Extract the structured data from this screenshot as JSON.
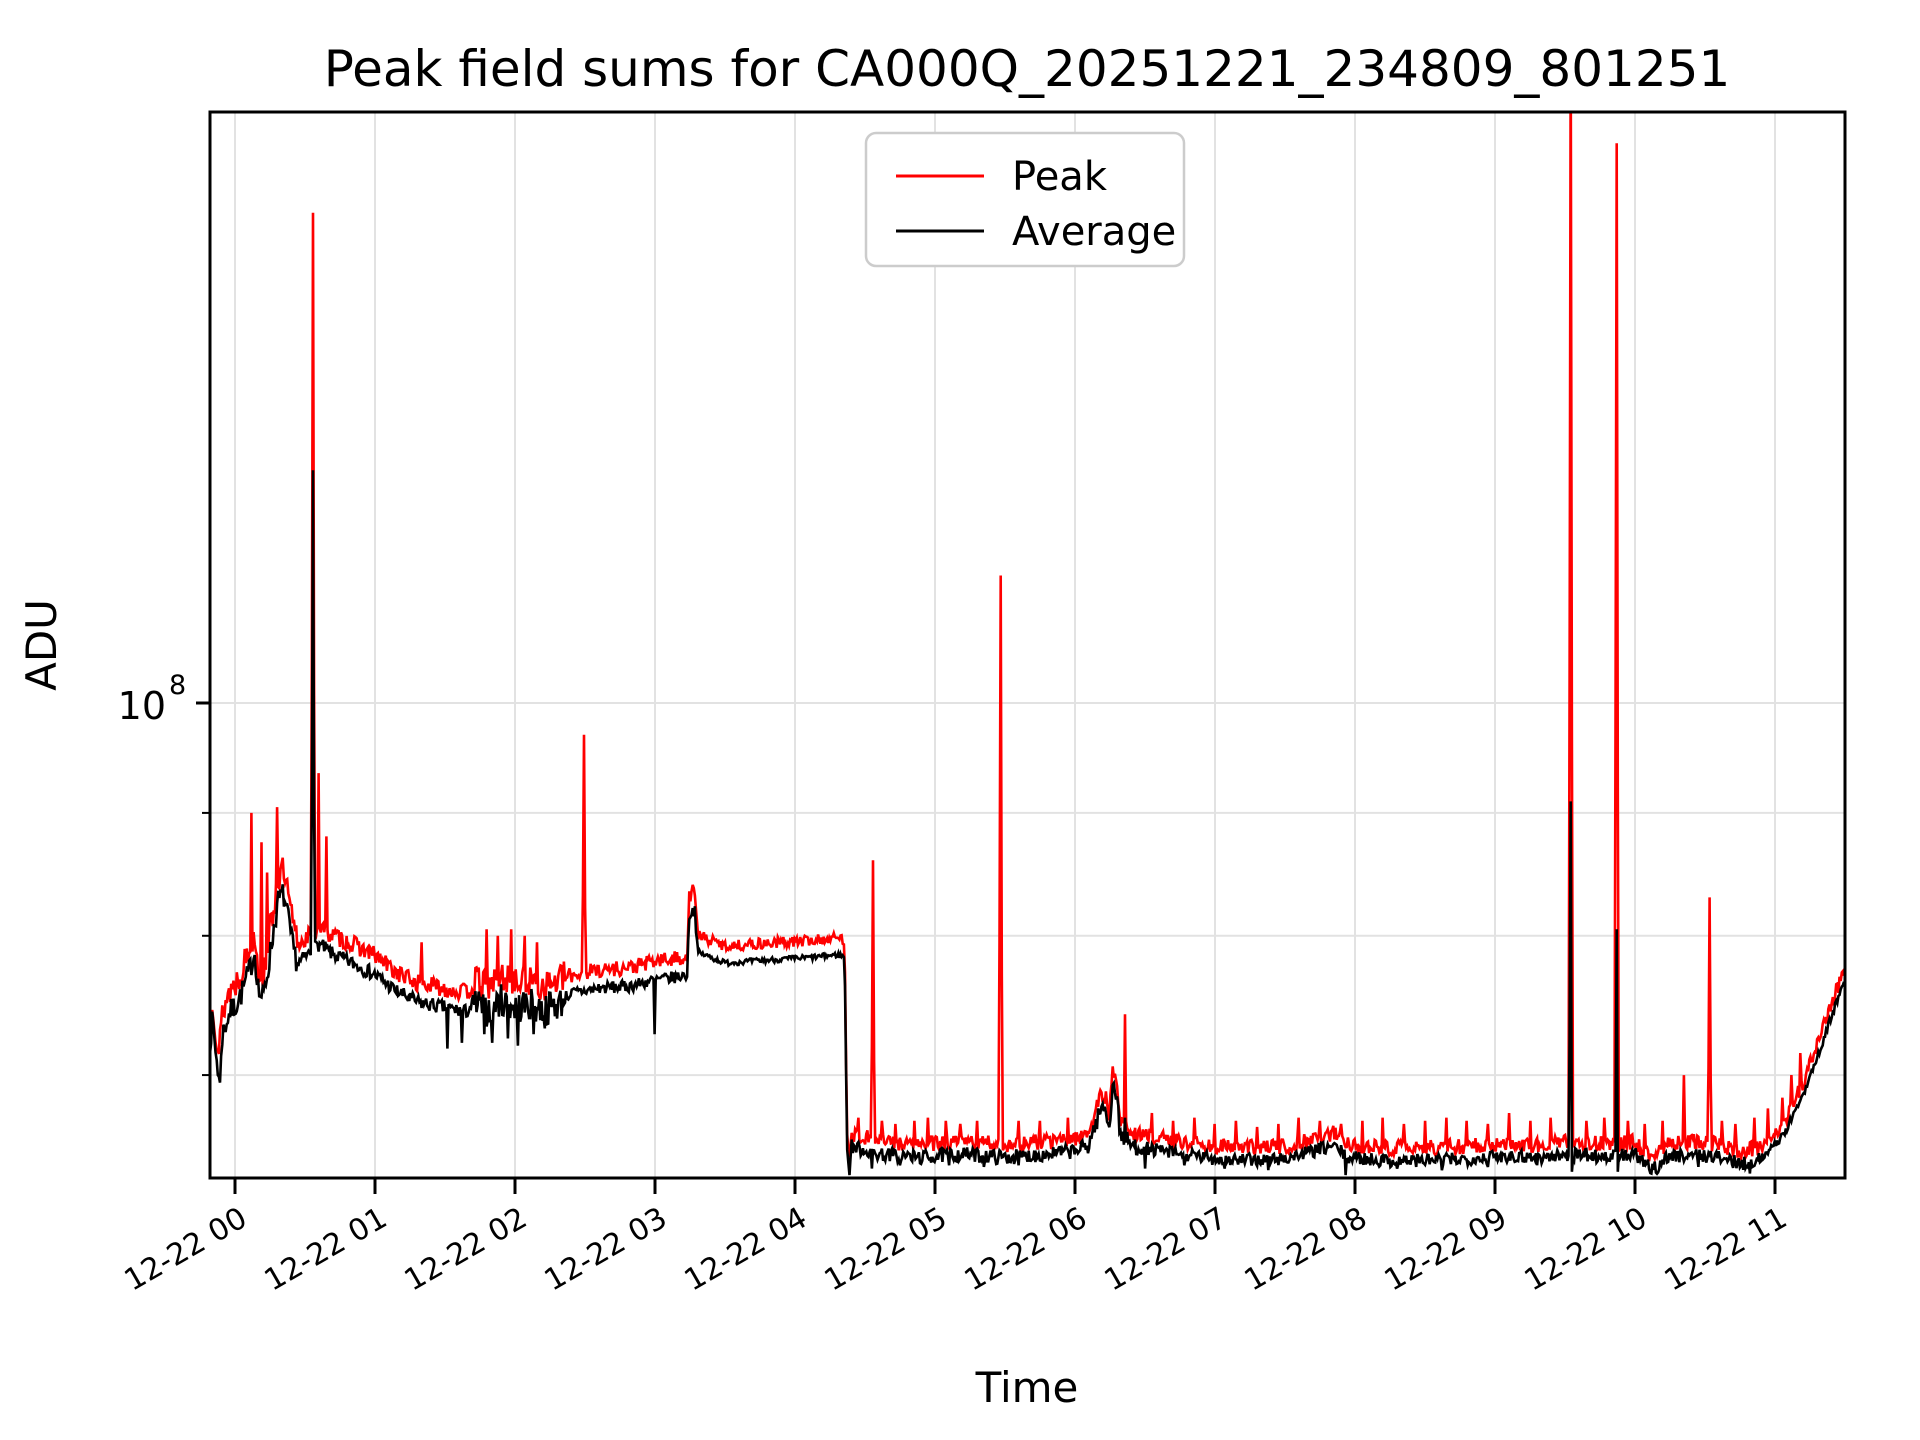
{
  "chart_data": {
    "type": "line",
    "title": "Peak field sums for CA000Q_20251221_234809_801251",
    "xlabel": "Time",
    "ylabel": "ADU",
    "x_tick_labels": [
      "12-22 00",
      "12-22 01",
      "12-22 02",
      "12-22 03",
      "12-22 04",
      "12-22 05",
      "12-22 06",
      "12-22 07",
      "12-22 08",
      "12-22 09",
      "12-22 10",
      "12-22 11"
    ],
    "x_hours_range": [
      -0.179,
      11.5
    ],
    "y_scale": "log",
    "value_scale_adu": 10000000,
    "y_tick_label": {
      "base": "10",
      "exp": "8"
    },
    "y_major_tick_1e7": 10,
    "y_minor_gridlines_1e7": [
      9,
      8,
      7
    ],
    "y_range_1e7": [
      6.33,
      17.6
    ],
    "grid": true,
    "legend_position": "upper center",
    "sample_step_hours": 0.008,
    "series": [
      {
        "name": "Peak",
        "color": "#ff0000",
        "ratio_zones": [
          [
            -0.2,
            4.36,
            1.014
          ],
          [
            4.36,
            11.51,
            1.008
          ]
        ],
        "noise_zones": [
          [
            -0.2,
            0.45,
            0.014
          ],
          [
            0.45,
            1.7,
            0.008
          ],
          [
            1.7,
            2.35,
            0.014
          ],
          [
            2.35,
            3.3,
            0.007
          ],
          [
            3.3,
            4.36,
            0.005
          ],
          [
            4.36,
            11.51,
            0.007
          ]
        ],
        "spikes_t_v": [
          [
            0.12,
            9.0
          ],
          [
            0.185,
            8.75
          ],
          [
            0.225,
            8.5
          ],
          [
            0.3,
            9.05
          ],
          [
            0.56,
            16.0
          ],
          [
            0.6,
            9.35
          ],
          [
            0.655,
            8.8
          ],
          [
            1.33,
            7.95
          ],
          [
            1.8,
            8.05
          ],
          [
            1.88,
            8.0
          ],
          [
            1.97,
            8.05
          ],
          [
            2.07,
            8.0
          ],
          [
            2.16,
            7.95
          ],
          [
            2.49,
            9.7
          ],
          [
            3.27,
            8.4
          ],
          [
            4.45,
            6.72
          ],
          [
            4.56,
            8.6
          ],
          [
            4.62,
            6.7
          ],
          [
            4.72,
            6.68
          ],
          [
            4.85,
            6.7
          ],
          [
            4.95,
            6.72
          ],
          [
            5.08,
            6.7
          ],
          [
            5.18,
            6.68
          ],
          [
            5.3,
            6.7
          ],
          [
            5.47,
            11.3
          ],
          [
            5.6,
            6.7
          ],
          [
            5.75,
            6.7
          ],
          [
            5.95,
            6.72
          ],
          [
            6.36,
            7.42
          ],
          [
            6.55,
            6.75
          ],
          [
            6.7,
            6.7
          ],
          [
            6.85,
            6.72
          ],
          [
            7.0,
            6.68
          ],
          [
            7.15,
            6.7
          ],
          [
            7.3,
            6.66
          ],
          [
            7.45,
            6.68
          ],
          [
            7.6,
            6.72
          ],
          [
            7.75,
            6.7
          ],
          [
            7.9,
            6.68
          ],
          [
            8.05,
            6.7
          ],
          [
            8.2,
            6.72
          ],
          [
            8.35,
            6.68
          ],
          [
            8.5,
            6.7
          ],
          [
            8.65,
            6.72
          ],
          [
            8.8,
            6.7
          ],
          [
            8.95,
            6.68
          ],
          [
            9.1,
            6.75
          ],
          [
            9.25,
            6.7
          ],
          [
            9.4,
            6.72
          ],
          [
            9.54,
            19.0
          ],
          [
            9.65,
            6.7
          ],
          [
            9.78,
            6.72
          ],
          [
            9.87,
            17.1
          ],
          [
            9.95,
            6.7
          ],
          [
            10.07,
            6.68
          ],
          [
            10.2,
            6.7
          ],
          [
            10.35,
            7.0
          ],
          [
            10.53,
            8.3
          ],
          [
            10.62,
            6.7
          ],
          [
            10.72,
            6.68
          ],
          [
            10.85,
            6.72
          ],
          [
            10.95,
            6.78
          ],
          [
            11.05,
            6.85
          ],
          [
            11.12,
            7.0
          ],
          [
            11.18,
            7.15
          ]
        ]
      },
      {
        "name": "Average",
        "color": "#000000",
        "keyframes_t_v": [
          [
            -0.179,
            7.25
          ],
          [
            -0.16,
            7.4
          ],
          [
            -0.14,
            7.2
          ],
          [
            -0.115,
            7.0
          ],
          [
            -0.09,
            7.3
          ],
          [
            -0.04,
            7.45
          ],
          [
            0.0,
            7.5
          ],
          [
            0.05,
            7.6
          ],
          [
            0.1,
            7.75
          ],
          [
            0.14,
            7.9
          ],
          [
            0.17,
            7.6
          ],
          [
            0.2,
            7.55
          ],
          [
            0.24,
            7.8
          ],
          [
            0.28,
            8.1
          ],
          [
            0.31,
            8.3
          ],
          [
            0.345,
            8.35
          ],
          [
            0.38,
            8.15
          ],
          [
            0.41,
            7.95
          ],
          [
            0.45,
            7.8
          ],
          [
            0.5,
            7.85
          ],
          [
            0.555,
            7.9
          ],
          [
            0.6,
            7.95
          ],
          [
            0.7,
            7.87
          ],
          [
            0.85,
            7.8
          ],
          [
            1.0,
            7.72
          ],
          [
            1.15,
            7.6
          ],
          [
            1.3,
            7.52
          ],
          [
            1.5,
            7.48
          ],
          [
            1.65,
            7.45
          ],
          [
            1.72,
            7.52
          ],
          [
            1.8,
            7.48
          ],
          [
            1.9,
            7.55
          ],
          [
            2.0,
            7.5
          ],
          [
            2.1,
            7.52
          ],
          [
            2.2,
            7.48
          ],
          [
            2.3,
            7.52
          ],
          [
            2.4,
            7.58
          ],
          [
            2.6,
            7.62
          ],
          [
            2.8,
            7.63
          ],
          [
            3.0,
            7.68
          ],
          [
            3.15,
            7.7
          ],
          [
            3.23,
            7.72
          ],
          [
            3.245,
            8.18
          ],
          [
            3.285,
            8.22
          ],
          [
            3.305,
            7.88
          ],
          [
            3.5,
            7.8
          ],
          [
            3.8,
            7.82
          ],
          [
            4.1,
            7.84
          ],
          [
            4.3,
            7.86
          ],
          [
            4.35,
            7.85
          ],
          [
            4.36,
            7.5
          ],
          [
            4.37,
            6.6
          ],
          [
            4.385,
            6.4
          ],
          [
            4.4,
            6.55
          ],
          [
            4.6,
            6.5
          ],
          [
            4.9,
            6.48
          ],
          [
            5.2,
            6.5
          ],
          [
            5.5,
            6.48
          ],
          [
            5.8,
            6.5
          ],
          [
            6.0,
            6.52
          ],
          [
            6.09,
            6.55
          ],
          [
            6.15,
            6.7
          ],
          [
            6.19,
            6.8
          ],
          [
            6.22,
            6.78
          ],
          [
            6.245,
            6.68
          ],
          [
            6.27,
            6.95
          ],
          [
            6.295,
            6.9
          ],
          [
            6.32,
            6.65
          ],
          [
            6.35,
            6.6
          ],
          [
            6.38,
            6.58
          ],
          [
            6.42,
            6.55
          ],
          [
            6.6,
            6.52
          ],
          [
            6.9,
            6.48
          ],
          [
            7.2,
            6.46
          ],
          [
            7.5,
            6.47
          ],
          [
            7.75,
            6.53
          ],
          [
            7.85,
            6.55
          ],
          [
            7.95,
            6.48
          ],
          [
            8.2,
            6.46
          ],
          [
            8.5,
            6.46
          ],
          [
            8.8,
            6.47
          ],
          [
            9.1,
            6.49
          ],
          [
            9.35,
            6.48
          ],
          [
            9.6,
            6.5
          ],
          [
            9.8,
            6.48
          ],
          [
            10.0,
            6.5
          ],
          [
            10.07,
            6.43
          ],
          [
            10.15,
            6.41
          ],
          [
            10.22,
            6.48
          ],
          [
            10.4,
            6.5
          ],
          [
            10.6,
            6.48
          ],
          [
            10.75,
            6.44
          ],
          [
            10.88,
            6.46
          ],
          [
            11.0,
            6.55
          ],
          [
            11.1,
            6.68
          ],
          [
            11.2,
            6.88
          ],
          [
            11.3,
            7.12
          ],
          [
            11.4,
            7.4
          ],
          [
            11.5,
            7.68
          ]
        ],
        "noise_zones": [
          [
            -0.2,
            0.45,
            0.012
          ],
          [
            0.45,
            1.7,
            0.007
          ],
          [
            1.7,
            2.35,
            0.016
          ],
          [
            2.35,
            3.3,
            0.006
          ],
          [
            3.3,
            4.35,
            0.0028
          ],
          [
            4.35,
            6.05,
            0.007
          ],
          [
            6.05,
            6.45,
            0.009
          ],
          [
            6.45,
            10.9,
            0.0065
          ],
          [
            10.9,
            11.51,
            0.004
          ]
        ],
        "spikes_t_v": [
          [
            0.56,
            12.5
          ],
          [
            6.36,
            6.72
          ],
          [
            9.54,
            9.1
          ],
          [
            9.87,
            8.05
          ]
        ],
        "dips_t_v": [
          [
            -0.11,
            6.95
          ],
          [
            1.52,
            7.18
          ],
          [
            1.62,
            7.22
          ],
          [
            1.78,
            7.28
          ],
          [
            1.84,
            7.22
          ],
          [
            1.95,
            7.25
          ],
          [
            2.02,
            7.2
          ],
          [
            2.13,
            7.28
          ],
          [
            2.21,
            7.32
          ],
          [
            3.0,
            7.28
          ],
          [
            4.385,
            6.36
          ],
          [
            4.55,
            6.4
          ],
          [
            4.75,
            6.42
          ],
          [
            5.1,
            6.42
          ],
          [
            5.35,
            6.41
          ],
          [
            5.6,
            6.42
          ],
          [
            6.5,
            6.4
          ],
          [
            6.78,
            6.42
          ],
          [
            7.07,
            6.4
          ],
          [
            7.38,
            6.39
          ],
          [
            7.93,
            6.36
          ],
          [
            8.3,
            6.4
          ],
          [
            8.62,
            6.39
          ],
          [
            8.95,
            6.41
          ],
          [
            9.3,
            6.42
          ],
          [
            9.55,
            6.38
          ],
          [
            9.88,
            6.38
          ],
          [
            10.12,
            6.37
          ],
          [
            10.45,
            6.41
          ],
          [
            10.82,
            6.37
          ]
        ]
      }
    ],
    "colors": {
      "grid": "#e2e2e2",
      "spine": "#000000",
      "legend_border": "#cccccc",
      "background": "#ffffff"
    }
  }
}
